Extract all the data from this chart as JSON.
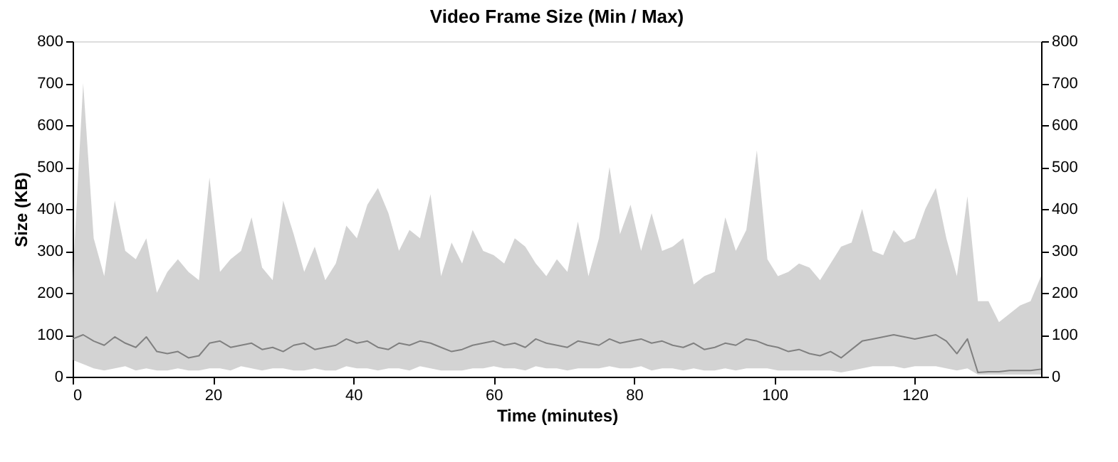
{
  "chart_data": {
    "type": "line",
    "title": "Video Frame Size (Min / Max)",
    "xlabel": "Time (minutes)",
    "ylabel": "Size (KB)",
    "x": [
      0,
      1.5,
      3,
      4.5,
      6,
      7.5,
      9,
      10.5,
      12,
      13.5,
      15,
      16.5,
      18,
      19.5,
      21,
      22.5,
      24,
      25.5,
      27,
      28.5,
      30,
      31.5,
      33,
      34.5,
      36,
      37.5,
      39,
      40.5,
      42,
      43.5,
      45,
      46.5,
      48,
      49.5,
      51,
      52.5,
      54,
      55.5,
      57,
      58.5,
      60,
      61.5,
      63,
      64.5,
      66,
      67.5,
      69,
      70.5,
      72,
      73.5,
      75,
      76.5,
      78,
      79.5,
      81,
      82.5,
      84,
      85.5,
      87,
      88.5,
      90,
      91.5,
      93,
      94.5,
      96,
      97.5,
      99,
      100.5,
      102,
      103.5,
      105,
      106.5,
      108,
      109.5,
      111,
      112.5,
      114,
      115.5,
      117,
      118.5,
      120,
      121.5,
      123,
      124.5,
      126,
      127.5,
      129,
      130.5,
      132,
      133.5,
      135,
      136.5,
      138
    ],
    "series": [
      {
        "color": "#808080",
        "values": [
          90,
          100,
          85,
          75,
          95,
          80,
          70,
          95,
          60,
          55,
          60,
          45,
          50,
          80,
          85,
          70,
          75,
          80,
          65,
          70,
          60,
          75,
          80,
          65,
          70,
          75,
          90,
          80,
          85,
          70,
          65,
          80,
          75,
          85,
          80,
          70,
          60,
          65,
          75,
          80,
          85,
          75,
          80,
          70,
          90,
          80,
          75,
          70,
          85,
          80,
          75,
          90,
          80,
          85,
          90,
          80,
          85,
          75,
          70,
          80,
          65,
          70,
          80,
          75,
          90,
          85,
          75,
          70,
          60,
          65,
          55,
          50,
          60,
          45,
          65,
          85,
          90,
          95,
          100,
          95,
          90,
          95,
          100,
          85,
          55,
          90,
          10,
          12,
          12,
          15,
          15,
          15,
          18
        ],
        "lower": [
          40,
          30,
          20,
          15,
          20,
          25,
          15,
          20,
          15,
          15,
          20,
          15,
          15,
          20,
          20,
          15,
          25,
          20,
          15,
          20,
          20,
          15,
          15,
          20,
          15,
          15,
          25,
          20,
          20,
          15,
          20,
          20,
          15,
          25,
          20,
          15,
          15,
          15,
          20,
          20,
          25,
          20,
          20,
          15,
          25,
          20,
          20,
          15,
          20,
          20,
          20,
          25,
          20,
          20,
          25,
          15,
          20,
          20,
          15,
          20,
          15,
          15,
          20,
          15,
          20,
          20,
          20,
          15,
          15,
          15,
          15,
          15,
          15,
          10,
          15,
          20,
          25,
          25,
          25,
          20,
          25,
          25,
          25,
          20,
          15,
          20,
          5,
          5,
          5,
          5,
          5,
          5,
          5
        ],
        "upper": [
          230,
          700,
          330,
          240,
          420,
          300,
          280,
          330,
          200,
          250,
          280,
          250,
          230,
          475,
          250,
          280,
          300,
          380,
          260,
          230,
          420,
          340,
          250,
          310,
          230,
          270,
          360,
          330,
          410,
          450,
          390,
          300,
          350,
          330,
          435,
          240,
          320,
          270,
          350,
          300,
          290,
          270,
          330,
          310,
          270,
          240,
          280,
          250,
          370,
          240,
          330,
          500,
          340,
          410,
          300,
          390,
          300,
          310,
          330,
          220,
          240,
          250,
          380,
          300,
          350,
          540,
          280,
          240,
          250,
          270,
          260,
          230,
          270,
          310,
          320,
          400,
          300,
          290,
          350,
          320,
          330,
          400,
          450,
          330,
          240,
          430,
          180,
          180,
          130,
          150,
          170,
          180,
          240
        ]
      }
    ],
    "xlim": [
      0,
      138
    ],
    "xticks": [
      0,
      20,
      40,
      60,
      80,
      100,
      120
    ],
    "ylim": [
      0,
      800
    ],
    "yticks": [
      0,
      100,
      200,
      300,
      400,
      500,
      600,
      700,
      800
    ],
    "y2lim": [
      0,
      800
    ],
    "y2ticks": [
      0,
      100,
      200,
      300,
      400,
      500,
      600,
      700,
      800
    ],
    "grid": false,
    "marker": "none",
    "line_style": "solid"
  }
}
